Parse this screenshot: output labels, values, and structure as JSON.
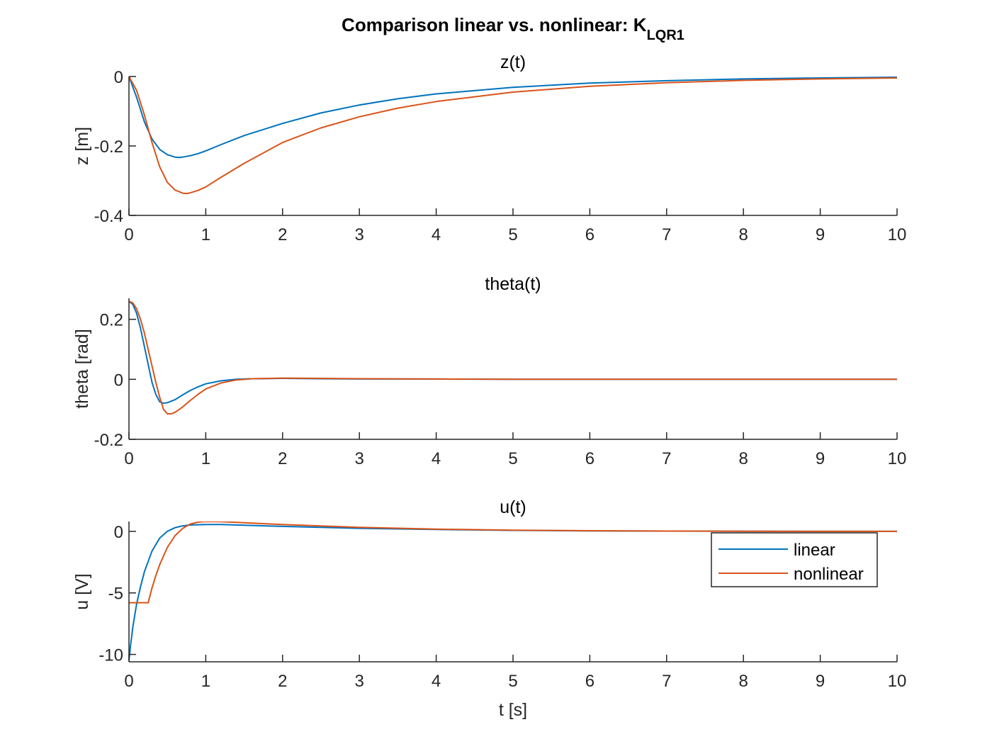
{
  "figure": {
    "title": "Comparison linear vs. nonlinear: K",
    "title_subscript": "LQR1"
  },
  "colors": {
    "linear": "#0072BD",
    "nonlinear": "#D95319",
    "axes": "#262626"
  },
  "legend": {
    "placement": "inside-right",
    "panel": 2,
    "entries": [
      "linear",
      "nonlinear"
    ]
  },
  "chart_data": [
    {
      "type": "line",
      "title": "z(t)",
      "xlabel": "",
      "ylabel": "z [m]",
      "xlim": [
        0,
        10
      ],
      "ylim": [
        -0.4,
        0
      ],
      "xticks": [
        "0",
        "1",
        "2",
        "3",
        "4",
        "5",
        "6",
        "7",
        "8",
        "9",
        "10"
      ],
      "yticks": [
        {
          "value": 0,
          "label": "0"
        },
        {
          "value": -0.2,
          "label": "-0.2"
        },
        {
          "value": -0.4,
          "label": "-0.4"
        }
      ],
      "grid": false,
      "series": [
        {
          "name": "linear",
          "x": [
            0,
            0.1,
            0.2,
            0.3,
            0.4,
            0.5,
            0.6,
            0.65,
            0.7,
            0.8,
            0.9,
            1.0,
            1.2,
            1.5,
            2,
            2.5,
            3,
            3.5,
            4,
            5,
            6,
            7,
            8,
            9,
            10
          ],
          "y": [
            0,
            -0.06,
            -0.13,
            -0.18,
            -0.21,
            -0.225,
            -0.232,
            -0.233,
            -0.232,
            -0.228,
            -0.222,
            -0.214,
            -0.196,
            -0.17,
            -0.135,
            -0.105,
            -0.082,
            -0.064,
            -0.05,
            -0.031,
            -0.019,
            -0.012,
            -0.007,
            -0.004,
            -0.002
          ]
        },
        {
          "name": "nonlinear",
          "x": [
            0,
            0.1,
            0.2,
            0.3,
            0.4,
            0.5,
            0.6,
            0.7,
            0.75,
            0.8,
            0.9,
            1.0,
            1.2,
            1.5,
            2,
            2.5,
            3,
            3.5,
            4,
            5,
            6,
            7,
            8,
            9,
            10
          ],
          "y": [
            0,
            -0.04,
            -0.11,
            -0.19,
            -0.26,
            -0.305,
            -0.327,
            -0.336,
            -0.337,
            -0.335,
            -0.328,
            -0.318,
            -0.29,
            -0.25,
            -0.19,
            -0.148,
            -0.116,
            -0.091,
            -0.072,
            -0.045,
            -0.028,
            -0.018,
            -0.011,
            -0.007,
            -0.004
          ]
        }
      ]
    },
    {
      "type": "line",
      "title": "theta(t)",
      "xlabel": "",
      "ylabel": "theta [rad]",
      "xlim": [
        0,
        10
      ],
      "ylim": [
        -0.2,
        0.27
      ],
      "xticks": [
        "0",
        "1",
        "2",
        "3",
        "4",
        "5",
        "6",
        "7",
        "8",
        "9",
        "10"
      ],
      "yticks": [
        {
          "value": 0.2,
          "label": "0.2"
        },
        {
          "value": 0,
          "label": "0"
        },
        {
          "value": -0.2,
          "label": "-0.2"
        }
      ],
      "grid": false,
      "series": [
        {
          "name": "linear",
          "x": [
            0,
            0.05,
            0.1,
            0.15,
            0.2,
            0.25,
            0.3,
            0.35,
            0.4,
            0.45,
            0.5,
            0.6,
            0.7,
            0.8,
            0.9,
            1.0,
            1.2,
            1.4,
            1.6,
            2,
            2.5,
            3,
            4,
            5,
            6,
            7,
            8,
            9,
            10
          ],
          "y": [
            0.26,
            0.25,
            0.22,
            0.17,
            0.11,
            0.05,
            -0.01,
            -0.05,
            -0.075,
            -0.08,
            -0.078,
            -0.068,
            -0.052,
            -0.037,
            -0.025,
            -0.015,
            -0.005,
            0,
            0.002,
            0.003,
            0.002,
            0.001,
            0.001,
            0,
            0,
            0,
            0,
            0,
            0
          ]
        },
        {
          "name": "nonlinear",
          "x": [
            0,
            0.05,
            0.1,
            0.15,
            0.2,
            0.25,
            0.3,
            0.35,
            0.4,
            0.45,
            0.5,
            0.55,
            0.6,
            0.7,
            0.8,
            0.9,
            1.0,
            1.2,
            1.4,
            1.6,
            2,
            2.5,
            3,
            4,
            5,
            6,
            7,
            8,
            9,
            10
          ],
          "y": [
            0.26,
            0.255,
            0.235,
            0.2,
            0.155,
            0.1,
            0.045,
            -0.01,
            -0.06,
            -0.1,
            -0.115,
            -0.115,
            -0.11,
            -0.092,
            -0.07,
            -0.05,
            -0.032,
            -0.012,
            -0.002,
            0.002,
            0.004,
            0.003,
            0.002,
            0.001,
            0,
            0,
            0,
            0,
            0,
            0
          ]
        }
      ]
    },
    {
      "type": "line",
      "title": "u(t)",
      "xlabel": "t [s]",
      "ylabel": "u [V]",
      "xlim": [
        0,
        10
      ],
      "ylim": [
        -10.6,
        0.8
      ],
      "xticks": [
        "0",
        "1",
        "2",
        "3",
        "4",
        "5",
        "6",
        "7",
        "8",
        "9",
        "10"
      ],
      "yticks": [
        {
          "value": 0,
          "label": "0"
        },
        {
          "value": -5,
          "label": "-5"
        },
        {
          "value": -10,
          "label": "-10"
        }
      ],
      "grid": false,
      "series": [
        {
          "name": "linear",
          "x": [
            0,
            0.02,
            0.05,
            0.1,
            0.15,
            0.2,
            0.3,
            0.4,
            0.5,
            0.6,
            0.7,
            0.8,
            1.0,
            1.2,
            1.5,
            2,
            3,
            4,
            5,
            6,
            7,
            8,
            9,
            10
          ],
          "y": [
            -10.5,
            -9.3,
            -7.8,
            -5.9,
            -4.5,
            -3.3,
            -1.6,
            -0.55,
            0,
            0.3,
            0.45,
            0.52,
            0.56,
            0.55,
            0.5,
            0.4,
            0.25,
            0.15,
            0.08,
            0.04,
            0.02,
            0.01,
            0,
            0
          ]
        },
        {
          "name": "nonlinear",
          "x": [
            0,
            0.25,
            0.3,
            0.35,
            0.4,
            0.5,
            0.6,
            0.7,
            0.8,
            0.9,
            1.0,
            1.2,
            1.5,
            2,
            3,
            4,
            5,
            6,
            7,
            8,
            9,
            10
          ],
          "y": [
            -5.8,
            -5.8,
            -4.6,
            -3.6,
            -2.7,
            -1.3,
            -0.35,
            0.25,
            0.6,
            0.75,
            0.8,
            0.78,
            0.7,
            0.55,
            0.33,
            0.18,
            0.1,
            0.05,
            0.02,
            0.01,
            0,
            0
          ]
        }
      ]
    }
  ]
}
